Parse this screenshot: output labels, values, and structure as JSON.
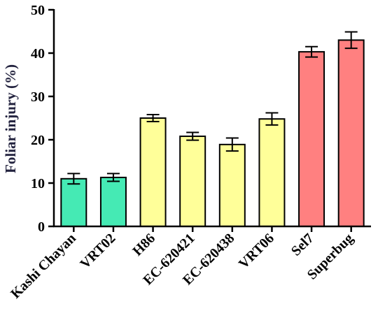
{
  "chart_data": {
    "type": "bar",
    "title": "",
    "xlabel": "",
    "ylabel": "Foliar injury (%)",
    "ylim": [
      0,
      50
    ],
    "yticks": [
      0,
      10,
      20,
      30,
      40,
      50
    ],
    "grid": false,
    "categories": [
      "Kashi Chayan",
      "VRT02",
      "H86",
      "EC-620421",
      "EC-620438",
      "VRT06",
      "Sel7",
      "Superbug"
    ],
    "values": [
      11.0,
      11.3,
      25.0,
      20.8,
      18.9,
      24.8,
      40.3,
      43.0
    ],
    "errors": [
      1.2,
      0.9,
      0.8,
      0.9,
      1.5,
      1.4,
      1.2,
      1.9
    ],
    "colors": [
      "#45eab4",
      "#45eab4",
      "#ffff99",
      "#ffff99",
      "#ffff99",
      "#ffff99",
      "#ff8080",
      "#ff8080"
    ]
  }
}
